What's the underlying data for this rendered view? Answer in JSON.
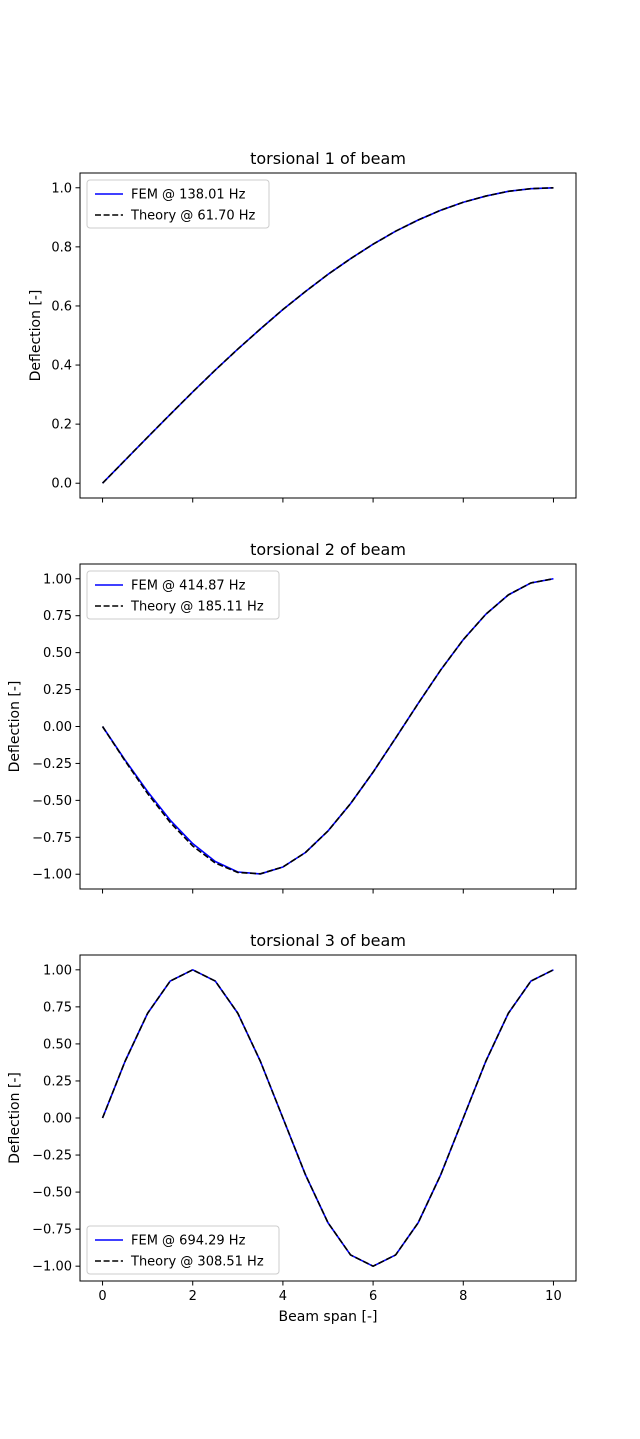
{
  "chart_data": [
    {
      "type": "line",
      "title": "torsional 1 of beam",
      "xlabel": "",
      "ylabel": "Deflection [-]",
      "xlim": [
        -0.5,
        10.5
      ],
      "ylim": [
        -0.05,
        1.05
      ],
      "xticks": [
        0,
        2,
        4,
        6,
        8,
        10
      ],
      "xtick_labels_visible": false,
      "yticks": [
        0.0,
        0.2,
        0.4,
        0.6,
        0.8,
        1.0
      ],
      "ytick_labels": [
        "0.0",
        "0.2",
        "0.4",
        "0.6",
        "0.8",
        "1.0"
      ],
      "legend_position": "upper-left",
      "grid": false,
      "x": [
        0,
        0.5,
        1,
        1.5,
        2,
        2.5,
        3,
        3.5,
        4,
        4.5,
        5,
        5.5,
        6,
        6.5,
        7,
        7.5,
        8,
        8.5,
        9,
        9.5,
        10
      ],
      "series": [
        {
          "name": "FEM @ 138.01 Hz",
          "color": "#0000ff",
          "style": "solid",
          "values": [
            0.0,
            0.078,
            0.156,
            0.233,
            0.309,
            0.383,
            0.454,
            0.522,
            0.588,
            0.649,
            0.707,
            0.76,
            0.809,
            0.853,
            0.891,
            0.924,
            0.951,
            0.972,
            0.988,
            0.997,
            1.0
          ]
        },
        {
          "name": "Theory @ 61.70 Hz",
          "color": "#000000",
          "style": "dashed",
          "values": [
            0.0,
            0.078,
            0.156,
            0.233,
            0.309,
            0.383,
            0.454,
            0.522,
            0.588,
            0.649,
            0.707,
            0.76,
            0.809,
            0.853,
            0.891,
            0.924,
            0.951,
            0.972,
            0.988,
            0.997,
            1.0
          ]
        }
      ]
    },
    {
      "type": "line",
      "title": "torsional 2 of beam",
      "xlabel": "",
      "ylabel": "Deflection [-]",
      "xlim": [
        -0.5,
        10.5
      ],
      "ylim": [
        -1.1,
        1.1
      ],
      "xticks": [
        0,
        2,
        4,
        6,
        8,
        10
      ],
      "xtick_labels_visible": false,
      "yticks": [
        -1.0,
        -0.75,
        -0.5,
        -0.25,
        0.0,
        0.25,
        0.5,
        0.75,
        1.0
      ],
      "ytick_labels": [
        "−1.00",
        "−0.75",
        "−0.50",
        "−0.25",
        "0.00",
        "0.25",
        "0.50",
        "0.75",
        "1.00"
      ],
      "legend_position": "upper-left",
      "grid": false,
      "x": [
        0,
        0.5,
        1,
        1.5,
        2,
        2.5,
        3,
        3.5,
        4,
        4.5,
        5,
        5.5,
        6,
        6.5,
        7,
        7.5,
        8,
        8.5,
        9,
        9.5,
        10
      ],
      "series": [
        {
          "name": "FEM @ 414.87 Hz",
          "color": "#0000ff",
          "style": "solid",
          "values": [
            0.0,
            -0.227,
            -0.441,
            -0.634,
            -0.793,
            -0.914,
            -0.985,
            -0.998,
            -0.951,
            -0.853,
            -0.707,
            -0.522,
            -0.309,
            -0.078,
            0.156,
            0.383,
            0.588,
            0.76,
            0.891,
            0.972,
            1.0
          ]
        },
        {
          "name": "Theory @ 185.11 Hz",
          "color": "#000000",
          "style": "dashed",
          "values": [
            0.0,
            -0.233,
            -0.454,
            -0.649,
            -0.809,
            -0.924,
            -0.988,
            -0.997,
            -0.951,
            -0.853,
            -0.707,
            -0.522,
            -0.309,
            -0.078,
            0.156,
            0.383,
            0.588,
            0.76,
            0.891,
            0.972,
            1.0
          ]
        }
      ]
    },
    {
      "type": "line",
      "title": "torsional 3 of beam",
      "xlabel": "Beam span [-]",
      "ylabel": "Deflection [-]",
      "xlim": [
        -0.5,
        10.5
      ],
      "ylim": [
        -1.1,
        1.1
      ],
      "xticks": [
        0,
        2,
        4,
        6,
        8,
        10
      ],
      "xtick_labels_visible": true,
      "xtick_labels": [
        "0",
        "2",
        "4",
        "6",
        "8",
        "10"
      ],
      "yticks": [
        -1.0,
        -0.75,
        -0.5,
        -0.25,
        0.0,
        0.25,
        0.5,
        0.75,
        1.0
      ],
      "ytick_labels": [
        "−1.00",
        "−0.75",
        "−0.50",
        "−0.25",
        "0.00",
        "0.25",
        "0.50",
        "0.75",
        "1.00"
      ],
      "legend_position": "lower-left",
      "grid": false,
      "x": [
        0,
        0.5,
        1,
        1.5,
        2,
        2.5,
        3,
        3.5,
        4,
        4.5,
        5,
        5.5,
        6,
        6.5,
        7,
        7.5,
        8,
        8.5,
        9,
        9.5,
        10
      ],
      "series": [
        {
          "name": "FEM @ 694.29 Hz",
          "color": "#0000ff",
          "style": "solid",
          "values": [
            0.0,
            0.383,
            0.707,
            0.924,
            1.0,
            0.924,
            0.707,
            0.383,
            0.0,
            -0.383,
            -0.707,
            -0.924,
            -1.0,
            -0.924,
            -0.707,
            -0.383,
            0.0,
            0.383,
            0.707,
            0.924,
            1.0
          ]
        },
        {
          "name": "Theory @ 308.51 Hz",
          "color": "#000000",
          "style": "dashed",
          "values": [
            0.0,
            0.383,
            0.707,
            0.924,
            1.0,
            0.924,
            0.707,
            0.383,
            0.0,
            -0.383,
            -0.707,
            -0.924,
            -1.0,
            -0.924,
            -0.707,
            -0.383,
            0.0,
            0.383,
            0.707,
            0.924,
            1.0
          ]
        }
      ]
    }
  ]
}
